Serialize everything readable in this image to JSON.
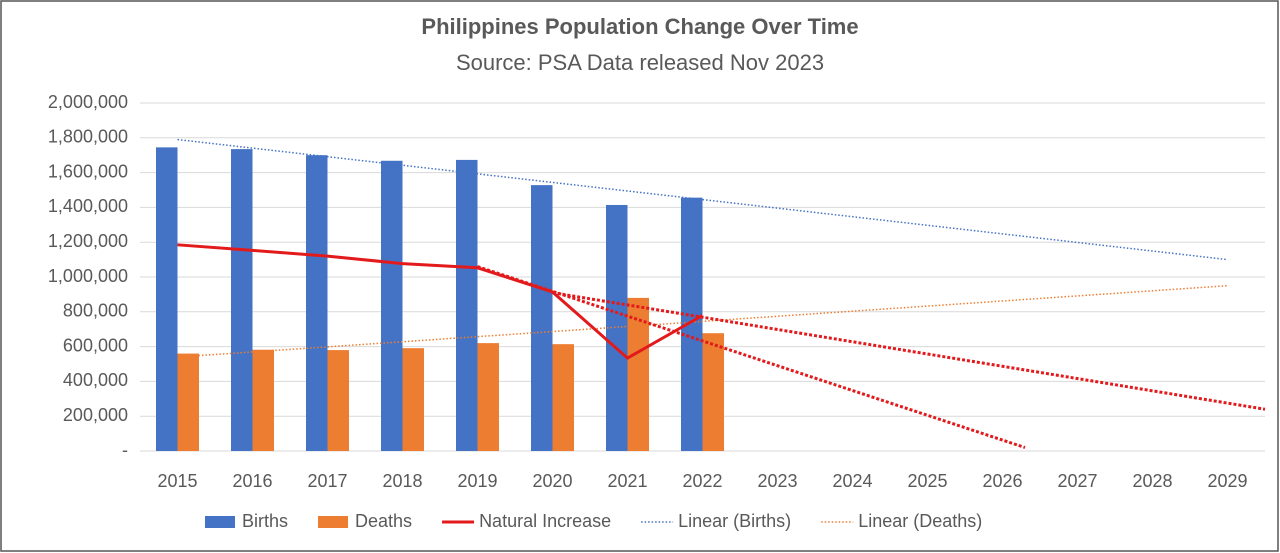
{
  "chart_data": {
    "type": "bar",
    "title": "Philippines Population Change Over Time",
    "subtitle": "Source: PSA Data released Nov 2023",
    "categories": [
      "2015",
      "2016",
      "2017",
      "2018",
      "2019",
      "2020",
      "2021",
      "2022",
      "2023",
      "2024",
      "2025",
      "2026",
      "2027",
      "2028",
      "2029"
    ],
    "series": [
      {
        "name": "Births",
        "type": "bar",
        "color": "#4472c4",
        "values": [
          1745000,
          1735000,
          1700000,
          1668000,
          1673000,
          1528000,
          1414000,
          1456000,
          null,
          null,
          null,
          null,
          null,
          null,
          null
        ]
      },
      {
        "name": "Deaths",
        "type": "bar",
        "color": "#ed7d31",
        "values": [
          560000,
          582000,
          580000,
          591000,
          620000,
          614000,
          880000,
          677000,
          null,
          null,
          null,
          null,
          null,
          null,
          null
        ]
      },
      {
        "name": "Natural Increase",
        "type": "line",
        "color": "#e31a1c",
        "values": [
          1185000,
          1153000,
          1120000,
          1077000,
          1053000,
          914000,
          534000,
          779000,
          null,
          null,
          null,
          null,
          null,
          null,
          null
        ]
      }
    ],
    "trends": [
      {
        "name": "Linear (Births)",
        "color": "#4472c4",
        "x": [
          2015,
          2029
        ],
        "values": [
          1790000,
          1100000
        ]
      },
      {
        "name": "Linear (Deaths)",
        "color": "#ed7d31",
        "x": [
          2015,
          2029
        ],
        "values": [
          540000,
          950000
        ]
      }
    ],
    "extra_trends": [
      {
        "color": "#e31a1c",
        "x": [
          2019,
          2026.3
        ],
        "values": [
          1060000,
          20000
        ]
      },
      {
        "color": "#e31a1c",
        "x": [
          2020,
          2029.5
        ],
        "values": [
          910000,
          240000
        ]
      }
    ],
    "ylim": [
      0,
      2000000
    ],
    "yticks": [
      {
        "value": 0,
        "label": "-"
      },
      {
        "value": 200000,
        "label": "200,000"
      },
      {
        "value": 400000,
        "label": "400,000"
      },
      {
        "value": 600000,
        "label": "600,000"
      },
      {
        "value": 800000,
        "label": "800,000"
      },
      {
        "value": 1000000,
        "label": "1,000,000"
      },
      {
        "value": 1200000,
        "label": "1,200,000"
      },
      {
        "value": 1400000,
        "label": "1,400,000"
      },
      {
        "value": 1600000,
        "label": "1,600,000"
      },
      {
        "value": 1800000,
        "label": "1,800,000"
      },
      {
        "value": 2000000,
        "label": "2,000,000"
      }
    ],
    "grid": true
  }
}
